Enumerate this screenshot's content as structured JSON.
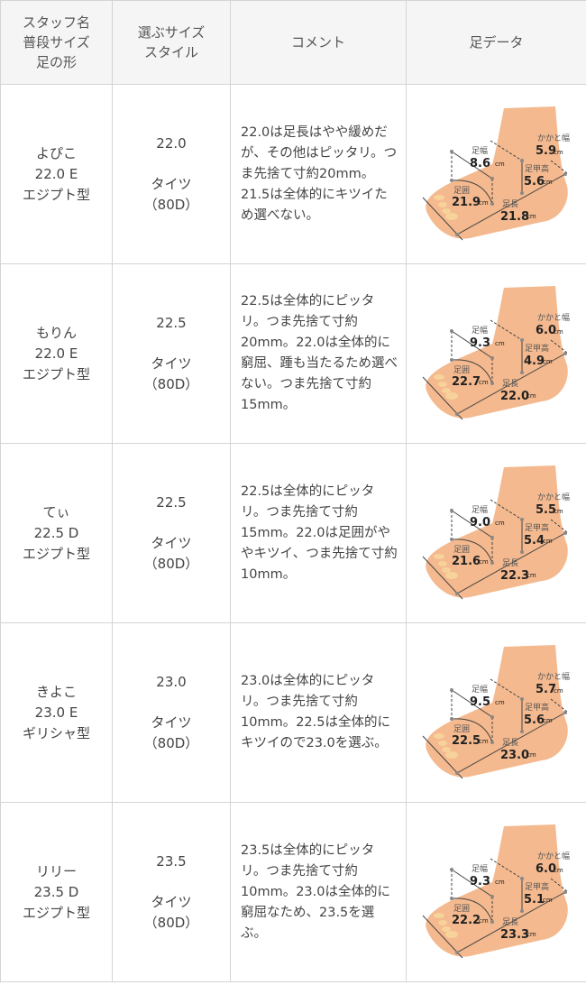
{
  "header": {
    "col1": [
      "スタッフ名",
      "普段サイズ",
      "足の形"
    ],
    "col2": [
      "選ぶサイズ",
      "スタイル"
    ],
    "col3": "コメント",
    "col4": "足データ"
  },
  "foot_labels": {
    "width": "足幅",
    "heel": "かかと幅",
    "instep": "足甲高",
    "girth": "足囲",
    "length": "足長",
    "unit": "cm"
  },
  "rows": [
    {
      "name": "よぴこ",
      "usual": "22.0 E",
      "shape": "エジプト型",
      "size": "22.0",
      "style": "タイツ",
      "den": "（80D）",
      "comment": "22.0は足長はやや緩めだが、その他はピッタリ。つま先捨て寸約20mm。21.5は全体的にキツイため選べない。",
      "foot": {
        "width": "8.6",
        "heel": "5.9",
        "instep": "5.6",
        "girth": "21.9",
        "length": "21.8"
      }
    },
    {
      "name": "もりん",
      "usual": "22.0 E",
      "shape": "エジプト型",
      "size": "22.5",
      "style": "タイツ",
      "den": "（80D）",
      "comment": "22.5は全体的にピッタリ。つま先捨て寸約20mm。22.0は全体的に窮屈、踵も当たるため選べない。つま先捨て寸約15mm。",
      "foot": {
        "width": "9.3",
        "heel": "6.0",
        "instep": "4.9",
        "girth": "22.7",
        "length": "22.0"
      }
    },
    {
      "name": "てぃ",
      "usual": "22.5 D",
      "shape": "エジプト型",
      "size": "22.5",
      "style": "タイツ",
      "den": "（80D）",
      "comment": "22.5は全体的にピッタリ。つま先捨て寸約15mm。22.0は足囲がややキツイ、つま先捨て寸約10mm。",
      "foot": {
        "width": "9.0",
        "heel": "5.5",
        "instep": "5.4",
        "girth": "21.6",
        "length": "22.3"
      }
    },
    {
      "name": "きよこ",
      "usual": "23.0 E",
      "shape": "ギリシャ型",
      "size": "23.0",
      "style": "タイツ",
      "den": "（80D）",
      "comment": "23.0は全体的にピッタリ。つま先捨て寸約10mm。22.5は全体的にキツイので23.0を選ぶ。",
      "foot": {
        "width": "9.5",
        "heel": "5.7",
        "instep": "5.6",
        "girth": "22.5",
        "length": "23.0"
      }
    },
    {
      "name": "リリー",
      "usual": "23.5 D",
      "shape": "エジプト型",
      "size": "23.5",
      "style": "タイツ",
      "den": "（80D）",
      "comment": "23.5は全体的にピッタリ。つま先捨て寸約10mm。23.0は全体的に窮屈なため、23.5を選ぶ。",
      "foot": {
        "width": "9.3",
        "heel": "6.0",
        "instep": "5.1",
        "girth": "22.2",
        "length": "23.3"
      }
    }
  ],
  "colors": {
    "skin": "#f4b98e",
    "border": "#d4d4d4",
    "header_bg": "#f5f5f5"
  }
}
